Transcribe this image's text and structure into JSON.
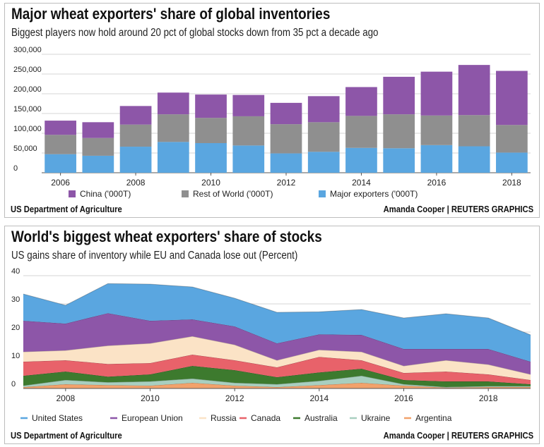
{
  "chart_data": [
    {
      "type": "bar",
      "stacked": true,
      "title": "Major wheat exporters' share of global inventories",
      "subtitle": "Biggest players now hold around 20 pct of global stocks down from 35 pct a decade ago",
      "categories": [
        "2006",
        "2007",
        "2008",
        "2009",
        "2010",
        "2011",
        "2012",
        "2013",
        "2014",
        "2015",
        "2016",
        "2017",
        "2018"
      ],
      "series": [
        {
          "name": "Major exporters ('000T)",
          "color": "#5aa6e0",
          "values": [
            47000,
            43000,
            66000,
            78000,
            75000,
            69000,
            49000,
            53000,
            63000,
            62000,
            70000,
            67000,
            51000
          ]
        },
        {
          "name": "Rest of World ('000T)",
          "color": "#8f8f8f",
          "values": [
            49000,
            45000,
            56000,
            70000,
            64000,
            74000,
            74000,
            75000,
            81000,
            86000,
            75000,
            79000,
            70000
          ]
        },
        {
          "name": "China ('000T)",
          "color": "#8d56a8",
          "values": [
            36000,
            40000,
            47000,
            55000,
            59000,
            54000,
            54000,
            66000,
            73000,
            95000,
            111000,
            127000,
            137000
          ]
        }
      ],
      "legend_order": [
        2,
        1,
        0
      ],
      "x_tick_labels": [
        "2006",
        "2008",
        "2010",
        "2012",
        "2014",
        "2016",
        "2018"
      ],
      "y_tick_labels": [
        "0",
        "50,000",
        "100,000",
        "150,000",
        "200,000",
        "250,000",
        "300,000"
      ],
      "ylim": [
        0,
        300000
      ],
      "grid": true,
      "legend_position": "bottom",
      "source": "US Department of Agriculture",
      "credit": "Amanda Cooper  | REUTERS GRAPHICS"
    },
    {
      "type": "area",
      "stacked": true,
      "title": "World's biggest wheat exporters' share of stocks",
      "subtitle": "US gains share of inventory while EU and Canada lose out (Percent)",
      "x": [
        2007,
        2008,
        2009,
        2010,
        2011,
        2012,
        2013,
        2014,
        2015,
        2016,
        2017,
        2018,
        2019
      ],
      "series": [
        {
          "name": "Argentina",
          "color": "#f2a26b",
          "values": [
            0.5,
            1.5,
            1.2,
            1.0,
            2.0,
            1.0,
            0.5,
            1.2,
            2.0,
            1.0,
            0.3,
            0.5,
            0.5
          ]
        },
        {
          "name": "Ukraine",
          "color": "#a8cfc0",
          "values": [
            0.5,
            1.5,
            1.0,
            1.5,
            1.5,
            1.0,
            1.0,
            1.5,
            2.5,
            0.5,
            0.2,
            0.3,
            0.3
          ]
        },
        {
          "name": "Australia",
          "color": "#3d7a2e",
          "values": [
            3.5,
            3.0,
            2.0,
            2.5,
            4.5,
            4.5,
            2.5,
            3.0,
            2.5,
            1.5,
            2.0,
            1.7,
            0.7
          ]
        },
        {
          "name": "Canada",
          "color": "#e8626a",
          "values": [
            5.0,
            4.0,
            4.5,
            4.0,
            4.0,
            3.5,
            3.5,
            5.5,
            3.0,
            2.5,
            3.5,
            2.5,
            1.5
          ]
        },
        {
          "name": "Russia",
          "color": "#fbe3c6",
          "values": [
            3.5,
            3.5,
            6.5,
            7.0,
            6.5,
            5.5,
            2.5,
            2.5,
            3.0,
            2.5,
            4.0,
            3.5,
            2.0
          ]
        },
        {
          "name": "European Union",
          "color": "#8d56a8",
          "values": [
            11.0,
            9.5,
            11.5,
            8.0,
            6.0,
            6.5,
            6.0,
            5.5,
            6.0,
            6.0,
            4.0,
            5.5,
            4.5
          ]
        },
        {
          "name": "United States",
          "color": "#5aa6e0",
          "values": [
            9.5,
            6.5,
            10.5,
            13.0,
            11.5,
            10.0,
            11.0,
            8.0,
            9.0,
            11.0,
            12.5,
            11.0,
            9.5
          ]
        }
      ],
      "legend_order": [
        6,
        5,
        4,
        3,
        2,
        1,
        0
      ],
      "x_tick_labels": [
        "2008",
        "2010",
        "2012",
        "2014",
        "2016",
        "2018"
      ],
      "y_tick_labels": [
        "0",
        "10",
        "20",
        "30",
        "40"
      ],
      "ylim": [
        0,
        40
      ],
      "grid": true,
      "legend_position": "bottom",
      "source": "US Department of Agriculture",
      "credit": "Amanda Cooper  | REUTERS GRAPHICS"
    }
  ]
}
